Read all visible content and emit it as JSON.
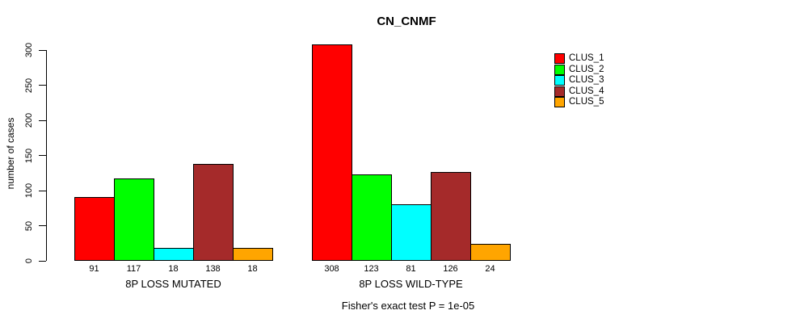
{
  "title": "CN_CNMF",
  "chart_data": {
    "type": "bar",
    "title": "CN_CNMF",
    "ylabel": "number of cases",
    "xlabel": "",
    "ylim": [
      0,
      300
    ],
    "yticks": [
      0,
      50,
      100,
      150,
      200,
      250,
      300
    ],
    "grid": false,
    "legend_position": "right",
    "categories": [
      "8P LOSS MUTATED",
      "8P LOSS WILD-TYPE"
    ],
    "series": [
      {
        "name": "CLUS_1",
        "color": "#FF0000",
        "values": [
          91,
          308
        ]
      },
      {
        "name": "CLUS_2",
        "color": "#00FF00",
        "values": [
          117,
          123
        ]
      },
      {
        "name": "CLUS_3",
        "color": "#00FFFF",
        "values": [
          18,
          81
        ]
      },
      {
        "name": "CLUS_4",
        "color": "#A52A2A",
        "values": [
          138,
          126
        ]
      },
      {
        "name": "CLUS_5",
        "color": "#FFA500",
        "values": [
          18,
          24
        ]
      }
    ],
    "bar_labels_shown": true,
    "annotation": "Fisher's exact test P = 1e-05"
  }
}
